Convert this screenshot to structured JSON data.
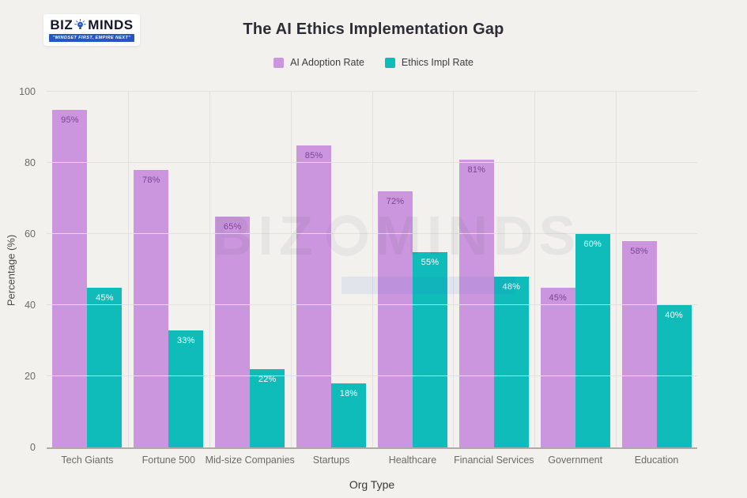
{
  "header": {
    "title": "The AI Ethics Implementation Gap"
  },
  "logo": {
    "name_left": "BIZ",
    "name_right": "MINDS",
    "tagline": "\"MINDSET FIRST, EMPIRE NEXT\"",
    "banner_color": "#2456c4",
    "bulb_color": "#2456c4"
  },
  "watermark": {
    "text_left": "BIZ",
    "text_right": "MINDS"
  },
  "chart_data": {
    "type": "bar",
    "title": "The AI Ethics Implementation Gap",
    "categories": [
      "Tech Giants",
      "Fortune 500",
      "Mid-size Companies",
      "Startups",
      "Healthcare",
      "Financial Services",
      "Government",
      "Education"
    ],
    "series": [
      {
        "name": "AI Adoption Rate",
        "color": "#cb96dd",
        "label_color": "#7c4394",
        "values": [
          95,
          78,
          65,
          85,
          72,
          81,
          45,
          58
        ]
      },
      {
        "name": "Ethics Impl Rate",
        "color": "#0fbcba",
        "label_color": "#ffffff",
        "values": [
          45,
          33,
          22,
          18,
          55,
          48,
          60,
          40
        ]
      }
    ],
    "value_suffix": "%",
    "xlabel": "Org Type",
    "ylabel": "Percentage (%)",
    "ylim": [
      0,
      100
    ],
    "yticks": [
      0,
      20,
      40,
      60,
      80,
      100
    ],
    "grid": true,
    "legend_position": "top"
  },
  "colors": {
    "background": "#f2f1ee",
    "grid": "#e2e1dc",
    "axis_line": "#acaca6",
    "tick_text": "#6b6b64",
    "title_text": "#2d2d36"
  }
}
